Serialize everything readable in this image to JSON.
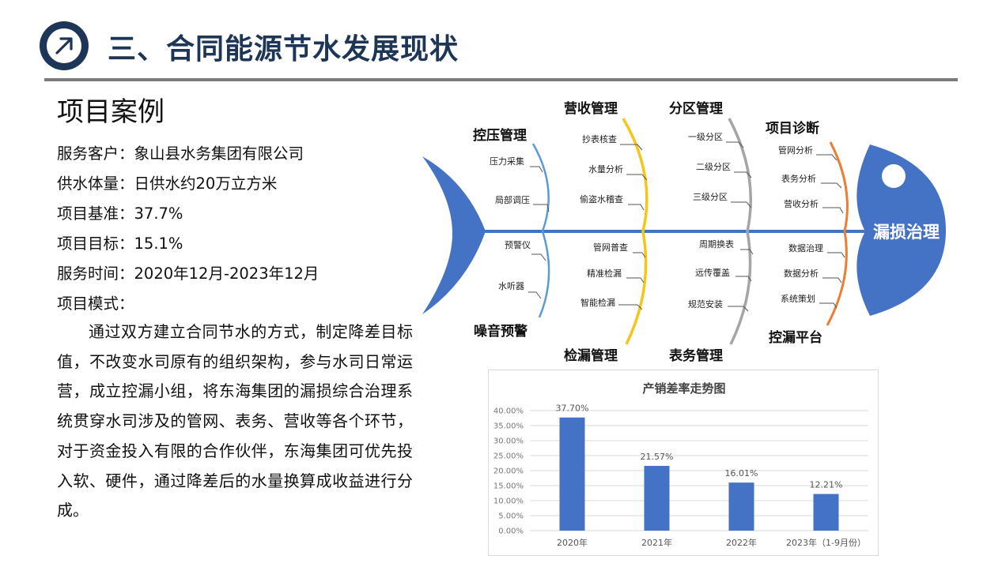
{
  "header": {
    "title": "三、合同能源节水发展现状",
    "icon": "arrow-up-right-icon",
    "accent_color": "#1d3556"
  },
  "section": {
    "heading": "项目案例",
    "client": "服务客户：象山县水务集团有限公司",
    "supply": "供水体量：日供水约20万立方米",
    "baseline": "项目基准：37.7%",
    "target": "项目目标：15.1%",
    "period": "服务时间：2020年12月-2023年12月",
    "mode_label": "项目模式：",
    "description": "通过双方建立合同节水的方式，制定降差目标值，不改变水司原有的组织架构，参与水司日常运营，成立控漏小组，将东海集团的漏损综合治理系统贯穿水司涉及的管网、表务、营收等各个环节，对于资金投入有限的合作伙伴，东海集团可优先投入软、硬件，通过降差后的水量换算成收益进行分成。"
  },
  "fishbone": {
    "head_label": "漏损治理",
    "fish_color": "#4472c4",
    "categories": {
      "pressure": "控压管理",
      "noise": "噪音预警",
      "revenue": "营收管理",
      "leak_detect": "检漏管理",
      "zoning": "分区管理",
      "meter": "表务管理",
      "diagnosis": "项目诊断",
      "platform": "控漏平台"
    },
    "items": {
      "pressure": [
        "压力采集",
        "局部调压"
      ],
      "noise": [
        "预警仪",
        "水听器"
      ],
      "revenue": [
        "抄表核查",
        "水量分析",
        "偷盗水稽查"
      ],
      "leak_detect": [
        "管网普查",
        "精准检漏",
        "智能检漏"
      ],
      "zoning": [
        "一级分区",
        "二级分区",
        "三级分区"
      ],
      "meter": [
        "周期换表",
        "远传覆盖",
        "规范安装"
      ],
      "diagnosis": [
        "管网分析",
        "表务分析",
        "营收分析"
      ],
      "platform": [
        "数据治理",
        "数据分析",
        "系统策划"
      ]
    },
    "bone_colors": {
      "pressure": "#5b9bd5",
      "revenue": "#f5c518",
      "zoning": "#a5a5a5",
      "diagnosis": "#ed7d31"
    }
  },
  "chart_data": {
    "type": "bar",
    "title": "产销差率走势图",
    "categories": [
      "2020年",
      "2021年",
      "2022年",
      "2023年（1-9月份）"
    ],
    "values": [
      37.7,
      21.57,
      16.01,
      12.21
    ],
    "data_labels": [
      "37.70%",
      "21.57%",
      "16.01%",
      "12.21%"
    ],
    "y_ticks": [
      "0.00%",
      "5.00%",
      "10.00%",
      "15.00%",
      "20.00%",
      "25.00%",
      "30.00%",
      "35.00%",
      "40.00%"
    ],
    "ylim": [
      0,
      40
    ],
    "grid": true,
    "bar_color": "#4472c4"
  }
}
